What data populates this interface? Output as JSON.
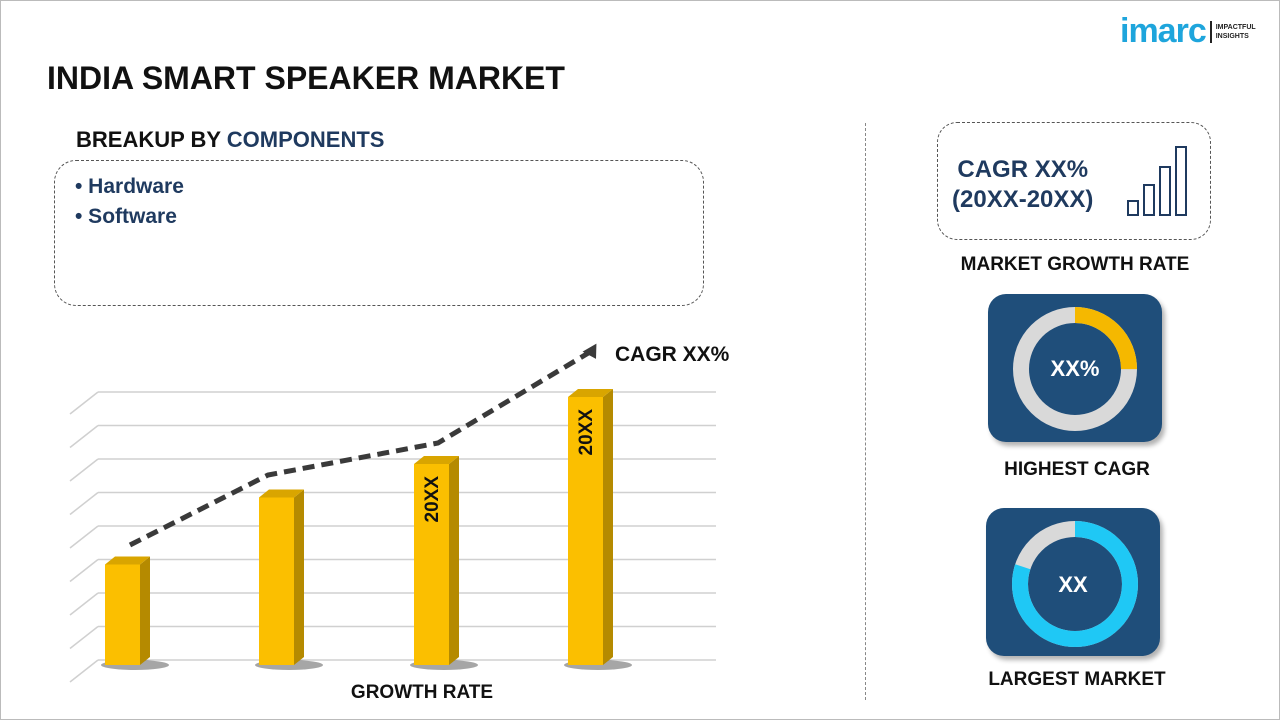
{
  "title": "INDIA SMART SPEAKER MARKET",
  "logo": {
    "text": "imarc",
    "tagline_1": "IMPACTFUL",
    "tagline_2": "INSIGHTS",
    "color": "#1ea5dc"
  },
  "breakup": {
    "prefix": "BREAKUP BY ",
    "highlight": "COMPONENTS",
    "items": [
      "• Hardware",
      "• Software"
    ]
  },
  "cagr_box": {
    "line1": "CAGR XX%",
    "line2": "(20XX-20XX)",
    "icon": "bar-growth-icon"
  },
  "market_growth_label": "MARKET GROWTH RATE",
  "highest_cagr": {
    "value": "XX%",
    "label": "HIGHEST CAGR",
    "ring_fill_fraction": 0.25,
    "accent": "#f5b800"
  },
  "largest_market": {
    "value": "XX",
    "label": "LARGEST MARKET",
    "ring_fill_fraction": 0.8,
    "accent": "#1fc8f5"
  },
  "chart_data": {
    "type": "bar",
    "categories": [
      "",
      "",
      "",
      ""
    ],
    "values": [
      3,
      5,
      6,
      8
    ],
    "bar_labels": [
      "",
      "",
      "20XX",
      "20XX"
    ],
    "trend_annotation": "CAGR XX%",
    "xlabel": "GROWTH RATE",
    "ylabel": "",
    "ylim": [
      0,
      8.5
    ],
    "grid": true,
    "bar_color": "#fbbf00"
  }
}
